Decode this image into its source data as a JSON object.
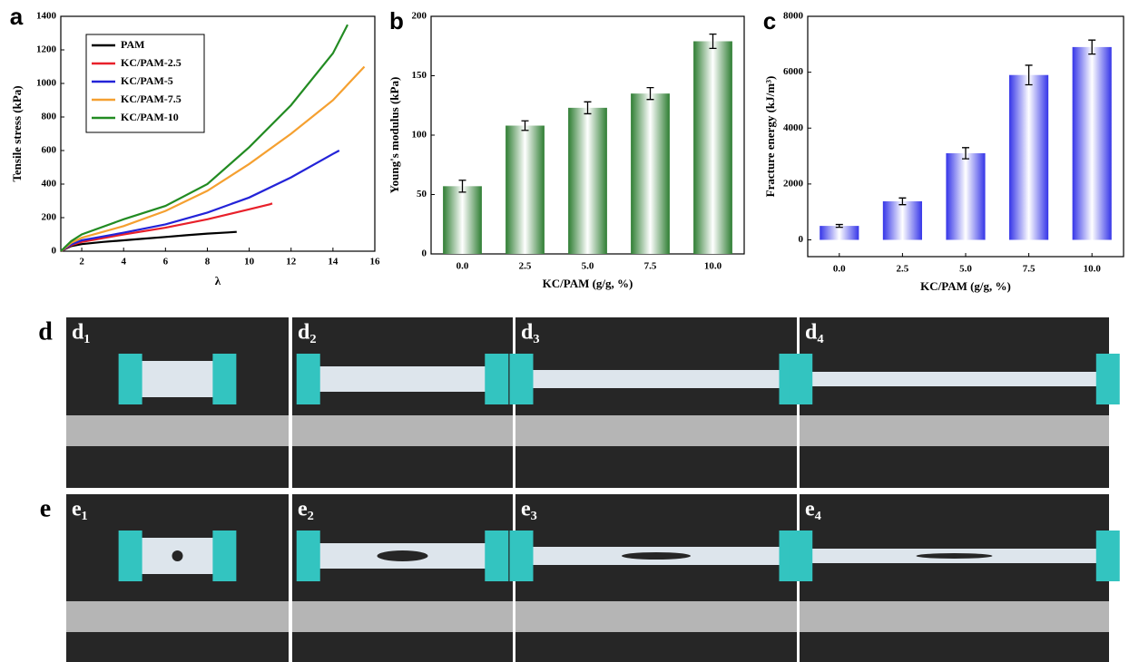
{
  "chart_data": [
    {
      "type": "line",
      "panel_label": "a",
      "xlabel": "λ",
      "ylabel": "Tensile stress (kPa)",
      "xlim": [
        1,
        16
      ],
      "xticks": [
        2,
        4,
        6,
        8,
        10,
        12,
        14,
        16
      ],
      "ylim": [
        0,
        1400
      ],
      "yticks": [
        0,
        200,
        400,
        600,
        800,
        1000,
        1200,
        1400
      ],
      "legend": "upper left",
      "series": [
        {
          "name": "PAM",
          "color": "#000000",
          "x": [
            1,
            1.5,
            2,
            3,
            4,
            5,
            6,
            7,
            8,
            9,
            9.4
          ],
          "values": [
            0,
            30,
            42,
            55,
            65,
            75,
            85,
            95,
            105,
            112,
            115
          ]
        },
        {
          "name": "KC/PAM-2.5",
          "color": "#e8202a",
          "x": [
            1,
            1.5,
            2,
            4,
            6,
            8,
            10,
            11,
            11.1
          ],
          "values": [
            0,
            35,
            55,
            100,
            140,
            190,
            250,
            280,
            285
          ]
        },
        {
          "name": "KC/PAM-5",
          "color": "#2323d8",
          "x": [
            1,
            1.5,
            2,
            4,
            6,
            8,
            10,
            12,
            14,
            14.3
          ],
          "values": [
            0,
            40,
            65,
            110,
            160,
            230,
            320,
            440,
            580,
            600
          ]
        },
        {
          "name": "KC/PAM-7.5",
          "color": "#f5a030",
          "x": [
            1,
            1.5,
            2,
            4,
            6,
            8,
            10,
            12,
            14,
            15.5
          ],
          "values": [
            0,
            50,
            80,
            150,
            240,
            360,
            520,
            700,
            900,
            1100
          ]
        },
        {
          "name": "KC/PAM-10",
          "color": "#228b22",
          "x": [
            1,
            1.5,
            2,
            4,
            6,
            8,
            10,
            12,
            14,
            14.7
          ],
          "values": [
            0,
            60,
            100,
            190,
            270,
            400,
            620,
            870,
            1180,
            1350
          ]
        }
      ]
    },
    {
      "type": "bar",
      "panel_label": "b",
      "xlabel": "KC/PAM (g/g, %)",
      "ylabel": "Young's modulus (kPa)",
      "categories": [
        "0.0",
        "2.5",
        "5.0",
        "7.5",
        "10.0"
      ],
      "values": [
        57,
        108,
        123,
        135,
        179
      ],
      "errors": [
        5,
        4,
        5,
        5,
        6
      ],
      "color": "#2e7d32",
      "ylim": [
        0,
        200
      ],
      "yticks": [
        0,
        50,
        100,
        150,
        200
      ]
    },
    {
      "type": "bar",
      "panel_label": "c",
      "xlabel": "KC/PAM (g/g, %)",
      "ylabel": "Fracture energy (kJ/m³)",
      "categories": [
        "0.0",
        "2.5",
        "5.0",
        "7.5",
        "10.0"
      ],
      "values": [
        500,
        1380,
        3100,
        5900,
        6900
      ],
      "errors": [
        50,
        120,
        200,
        350,
        250
      ],
      "color": "#3535e8",
      "ylim": [
        -600,
        8000
      ],
      "yticks": [
        0,
        2000,
        4000,
        6000,
        8000
      ]
    }
  ],
  "photos": {
    "rows": [
      {
        "label": "d",
        "panels": [
          "d₁",
          "d₂",
          "d₃",
          "d₄"
        ]
      },
      {
        "label": "e",
        "panels": [
          "e₁",
          "e₂",
          "e₃",
          "e₄"
        ]
      }
    ]
  }
}
